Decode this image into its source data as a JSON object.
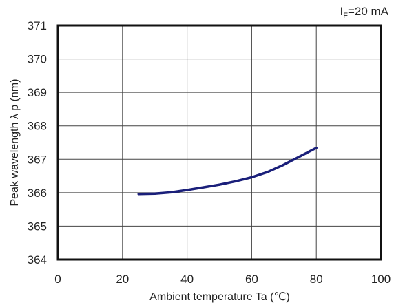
{
  "chart_data": {
    "type": "line",
    "condition": {
      "symbol": "I",
      "subscript": "F",
      "value": "=20 mA"
    },
    "xlabel": "Ambient temperature Ta (℃)",
    "ylabel": "Peak wavelength λ p (nm)",
    "xlim": [
      0,
      100
    ],
    "ylim": [
      364,
      371
    ],
    "x_ticks": [
      0,
      20,
      40,
      60,
      80,
      100
    ],
    "y_ticks": [
      364,
      365,
      366,
      367,
      368,
      369,
      370,
      371
    ],
    "grid": true,
    "series_color": "#1a1f7a",
    "series": [
      {
        "x": [
          25,
          30,
          35,
          40,
          45,
          50,
          55,
          60,
          65,
          70,
          75,
          80
        ],
        "y": [
          365.96,
          365.97,
          366.01,
          366.08,
          366.16,
          366.24,
          366.34,
          366.46,
          366.62,
          366.84,
          367.09,
          367.34
        ]
      }
    ]
  }
}
